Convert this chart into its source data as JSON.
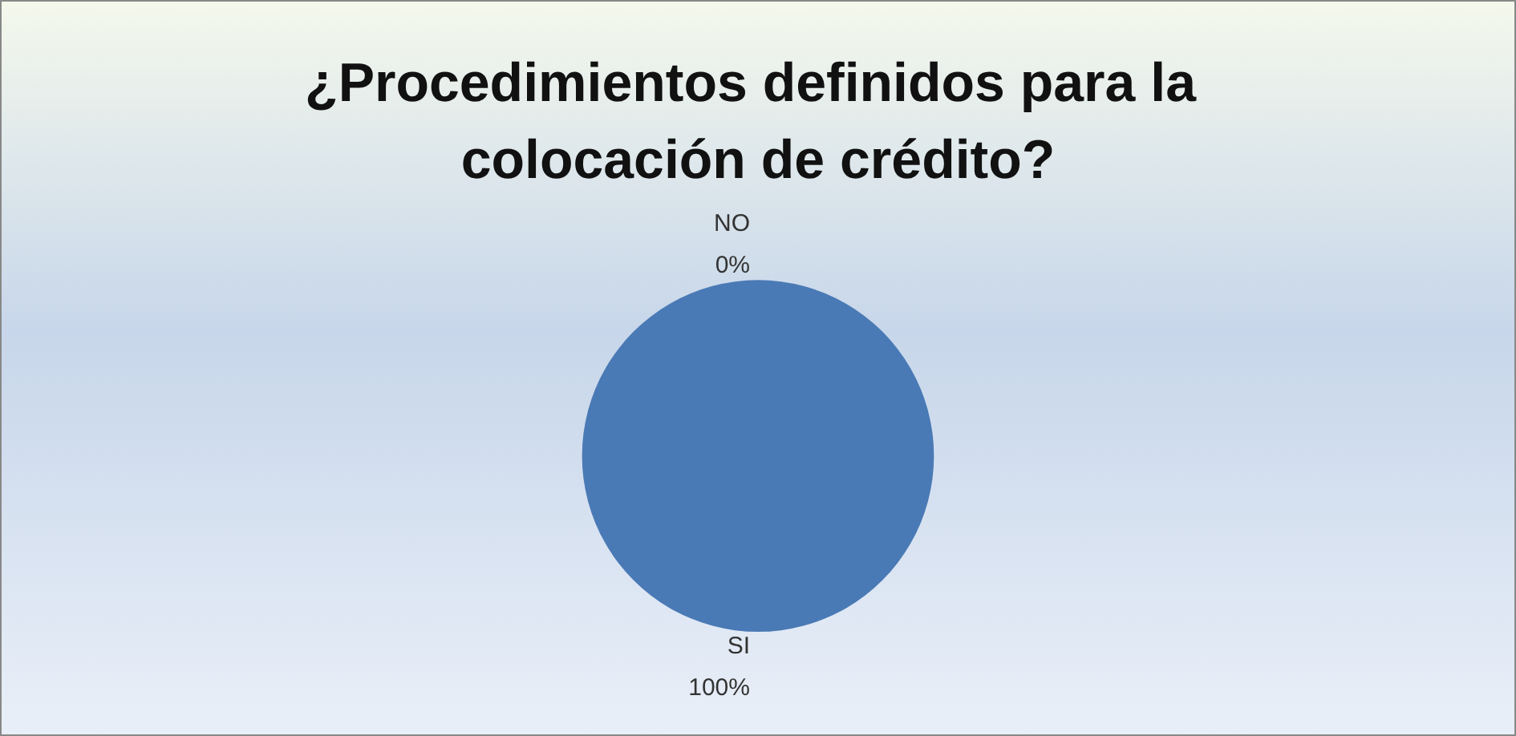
{
  "chart_data": {
    "type": "pie",
    "title": "¿Procedimientos definidos para la colocación de crédito?",
    "categories": [
      "NO",
      "SI"
    ],
    "values": [
      0,
      100
    ],
    "value_labels": [
      "0%",
      "100%"
    ],
    "colors": [
      "#c0504d",
      "#4a7ab5"
    ],
    "legend": false
  }
}
